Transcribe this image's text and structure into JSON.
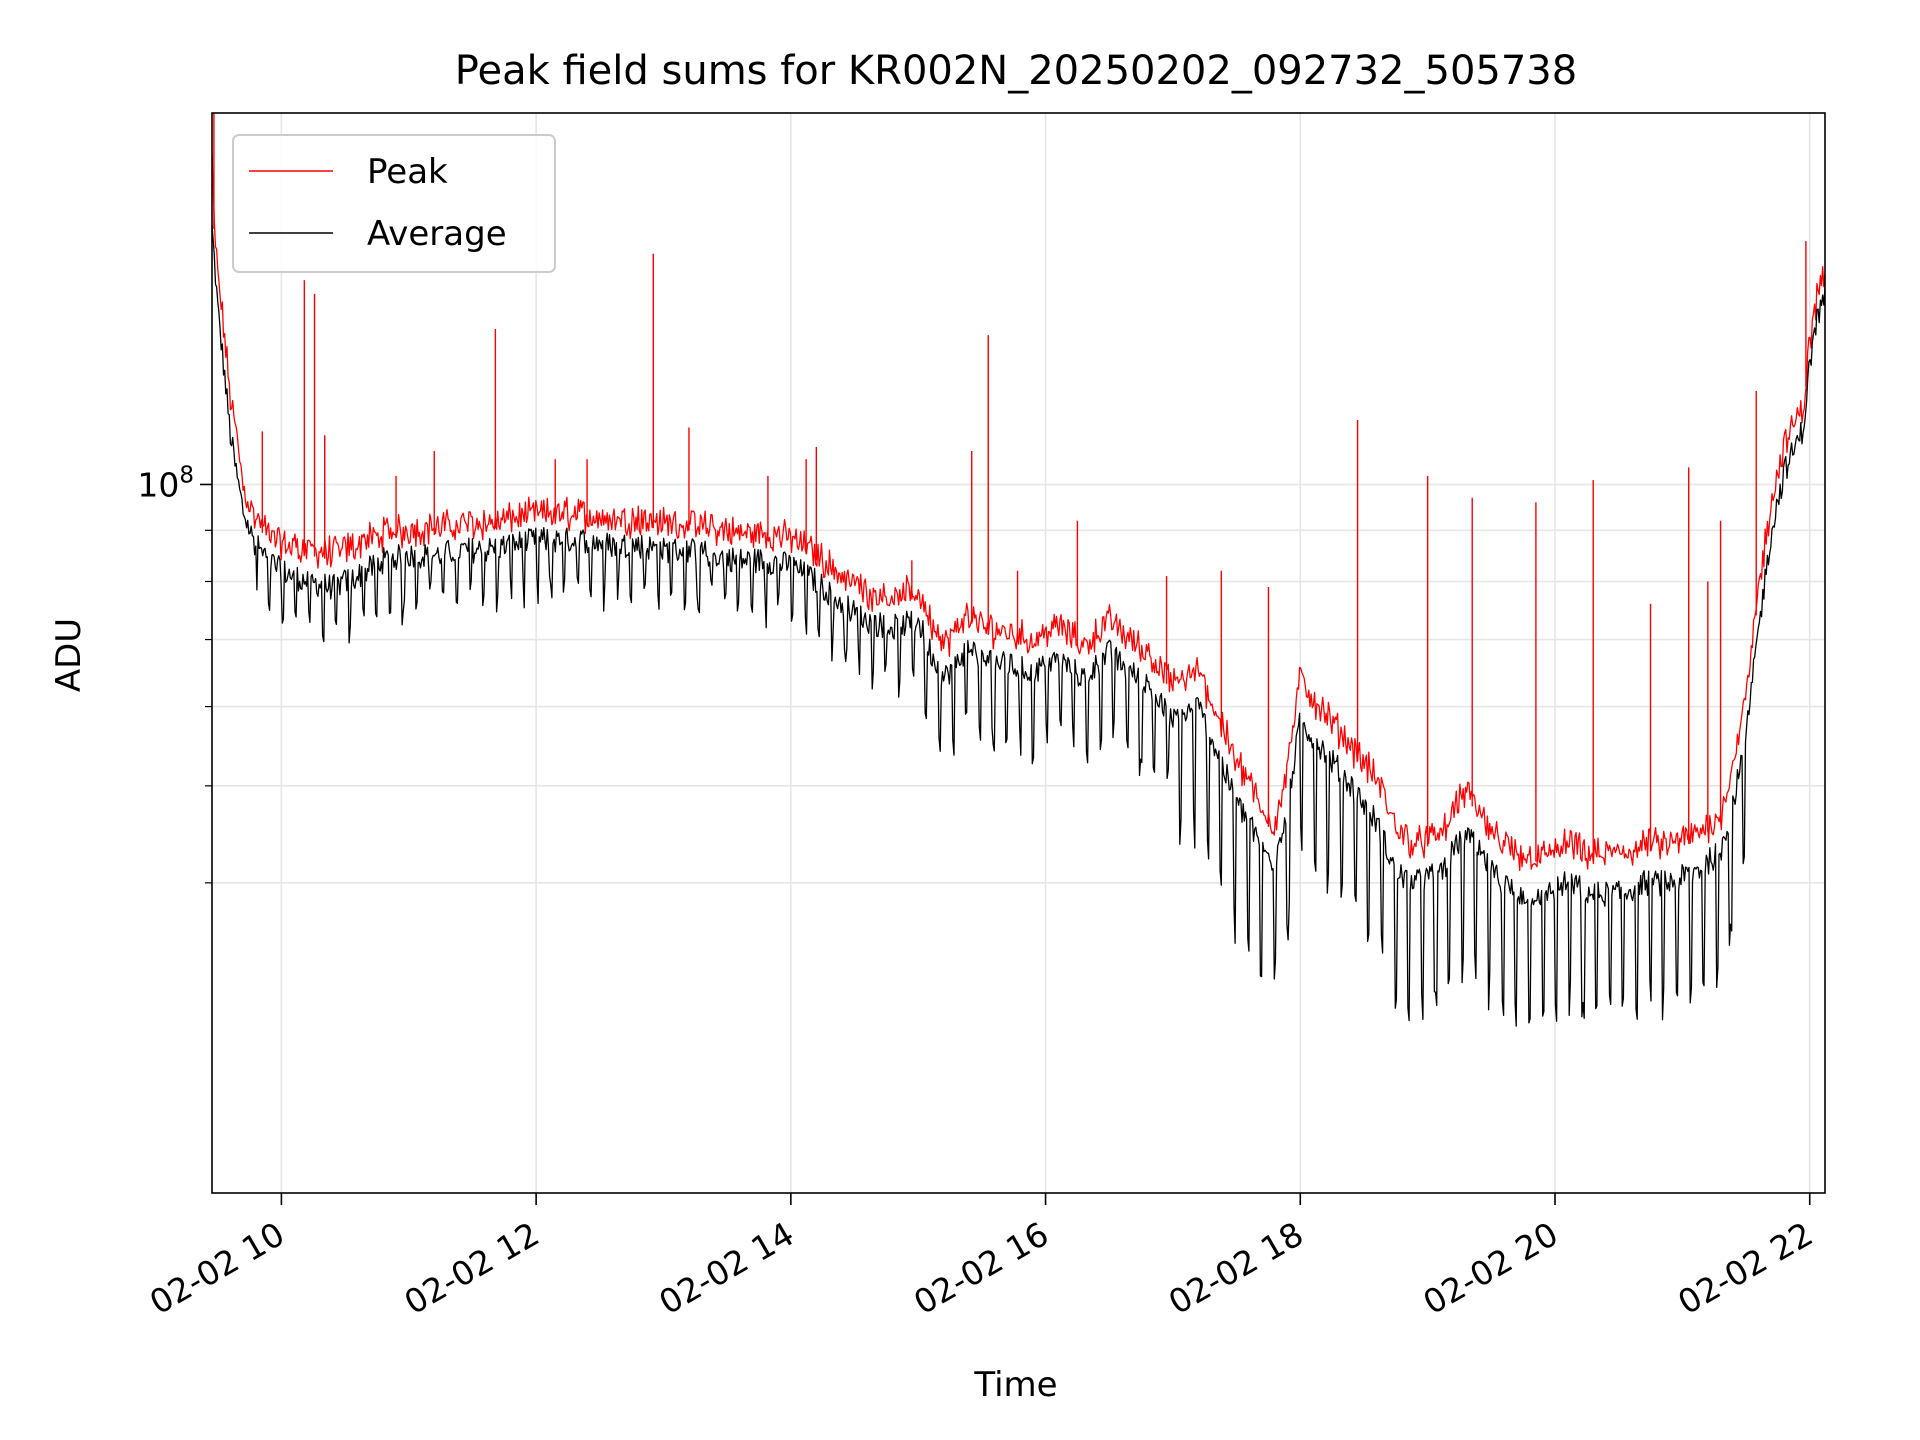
{
  "chart_data": {
    "type": "line",
    "title": "Peak field sums for KR002N_20250202_092732_505738",
    "xlabel": "Time",
    "ylabel": "ADU",
    "yscale": "log",
    "ylim": [
      19600000,
      235000000
    ],
    "xlim_hours": [
      9.455,
      22.12
    ],
    "x_ticks": [
      {
        "value": 10,
        "label": "02-02 10"
      },
      {
        "value": 12,
        "label": "02-02 12"
      },
      {
        "value": 14,
        "label": "02-02 14"
      },
      {
        "value": 16,
        "label": "02-02 16"
      },
      {
        "value": 18,
        "label": "02-02 18"
      },
      {
        "value": 20,
        "label": "02-02 20"
      },
      {
        "value": 22,
        "label": "02-02 22"
      }
    ],
    "y_major_ticks": [
      {
        "value": 100000000,
        "label_base": "10",
        "label_exp": "8"
      }
    ],
    "y_minor_ticks": [
      40000000,
      50000000,
      60000000,
      70000000,
      80000000,
      90000000
    ],
    "grid": true,
    "legend_position": "top-left",
    "colors": {
      "Peak": "#ff0000",
      "Average": "#000000"
    },
    "series": [
      {
        "name": "Peak",
        "x": [
          9.455,
          9.47,
          9.5,
          9.55,
          9.6,
          9.65,
          9.7,
          9.75,
          9.8,
          9.9,
          10.0,
          10.2,
          10.4,
          10.6,
          10.8,
          11.0,
          11.2,
          11.4,
          11.6,
          11.8,
          12.0,
          12.2,
          12.4,
          12.6,
          12.8,
          13.0,
          13.2,
          13.4,
          13.6,
          13.8,
          14.0,
          14.2,
          14.4,
          14.6,
          14.8,
          15.0,
          15.1,
          15.2,
          15.4,
          15.5,
          15.7,
          15.9,
          16.1,
          16.3,
          16.5,
          16.6,
          16.8,
          17.0,
          17.2,
          17.4,
          17.5,
          17.6,
          17.7,
          17.8,
          17.9,
          18.0,
          18.2,
          18.4,
          18.6,
          18.75,
          18.9,
          19.1,
          19.3,
          19.5,
          19.7,
          19.9,
          20.1,
          20.3,
          20.5,
          20.7,
          20.9,
          21.1,
          21.3,
          21.4,
          21.5,
          21.6,
          21.7,
          21.8,
          21.9,
          21.95,
          22.0,
          22.05,
          22.1,
          22.12
        ],
        "values": [
          210000000,
          180000000,
          160000000,
          140000000,
          120000000,
          110000000,
          98000000,
          94000000,
          91000000,
          88000000,
          86000000,
          85000000,
          84000000,
          86000000,
          88000000,
          89000000,
          89000000,
          90000000,
          90000000,
          91000000,
          92000000,
          92000000,
          92000000,
          91000000,
          91000000,
          90000000,
          90000000,
          89000000,
          88000000,
          88000000,
          87000000,
          84000000,
          80000000,
          77000000,
          76000000,
          77000000,
          72000000,
          68000000,
          73000000,
          71000000,
          70000000,
          69000000,
          71000000,
          68000000,
          72000000,
          70000000,
          67000000,
          62000000,
          64000000,
          56000000,
          52000000,
          50000000,
          46000000,
          45000000,
          52000000,
          63000000,
          58000000,
          54000000,
          50000000,
          45000000,
          43000000,
          44000000,
          49000000,
          44000000,
          42000000,
          42000000,
          43000000,
          42000000,
          42000000,
          43000000,
          43000000,
          44000000,
          46000000,
          52000000,
          60000000,
          78000000,
          95000000,
          108000000,
          114000000,
          118000000,
          137000000,
          150000000,
          158000000,
          160000000
        ]
      },
      {
        "name": "Average",
        "x": [
          9.455,
          9.47,
          9.5,
          9.55,
          9.6,
          9.65,
          9.7,
          9.75,
          9.8,
          9.9,
          10.0,
          10.2,
          10.4,
          10.6,
          10.8,
          11.0,
          11.2,
          11.4,
          11.6,
          11.8,
          12.0,
          12.2,
          12.4,
          12.6,
          12.8,
          13.0,
          13.2,
          13.4,
          13.6,
          13.8,
          14.0,
          14.2,
          14.4,
          14.6,
          14.8,
          15.0,
          15.1,
          15.2,
          15.4,
          15.5,
          15.7,
          15.9,
          16.1,
          16.3,
          16.5,
          16.6,
          16.8,
          17.0,
          17.2,
          17.4,
          17.5,
          17.6,
          17.7,
          17.8,
          17.9,
          18.0,
          18.2,
          18.4,
          18.6,
          18.75,
          18.9,
          19.1,
          19.3,
          19.5,
          19.7,
          19.9,
          20.1,
          20.3,
          20.5,
          20.7,
          20.9,
          21.1,
          21.3,
          21.4,
          21.5,
          21.6,
          21.7,
          21.8,
          21.9,
          21.95,
          22.0,
          22.05,
          22.1,
          22.12
        ],
        "values": [
          180000000,
          170000000,
          150000000,
          130000000,
          112000000,
          102000000,
          94000000,
          90000000,
          87000000,
          84000000,
          82000000,
          80000000,
          79000000,
          81000000,
          84000000,
          85000000,
          85000000,
          86000000,
          86000000,
          87000000,
          88000000,
          88000000,
          88000000,
          87000000,
          87000000,
          86000000,
          86000000,
          85000000,
          84000000,
          84000000,
          83000000,
          80000000,
          76000000,
          73000000,
          72000000,
          73000000,
          68000000,
          64000000,
          69000000,
          67000000,
          66000000,
          65000000,
          67000000,
          64000000,
          68000000,
          66000000,
          63000000,
          58000000,
          60000000,
          52000000,
          48000000,
          46000000,
          43000000,
          42000000,
          48000000,
          58000000,
          54000000,
          50000000,
          46000000,
          41000000,
          40000000,
          41000000,
          45000000,
          41000000,
          39000000,
          39000000,
          40000000,
          39000000,
          39000000,
          40000000,
          40000000,
          41000000,
          43000000,
          48000000,
          56000000,
          72000000,
          90000000,
          103000000,
          110000000,
          114000000,
          132000000,
          145000000,
          152000000,
          155000000
        ]
      }
    ],
    "spikes": [
      {
        "x": 9.47,
        "top": 235000000
      },
      {
        "x": 9.85,
        "top": 113000000
      },
      {
        "x": 10.18,
        "top": 160000000
      },
      {
        "x": 10.26,
        "top": 155000000
      },
      {
        "x": 10.34,
        "top": 112000000
      },
      {
        "x": 10.9,
        "top": 102000000
      },
      {
        "x": 11.2,
        "top": 108000000
      },
      {
        "x": 11.68,
        "top": 143000000
      },
      {
        "x": 12.15,
        "top": 106000000
      },
      {
        "x": 12.4,
        "top": 106000000
      },
      {
        "x": 12.92,
        "top": 170000000
      },
      {
        "x": 13.2,
        "top": 114000000
      },
      {
        "x": 13.82,
        "top": 102000000
      },
      {
        "x": 14.12,
        "top": 106000000
      },
      {
        "x": 14.2,
        "top": 109000000
      },
      {
        "x": 14.95,
        "top": 84000000
      },
      {
        "x": 15.42,
        "top": 108000000
      },
      {
        "x": 15.55,
        "top": 141000000
      },
      {
        "x": 15.78,
        "top": 82000000
      },
      {
        "x": 16.25,
        "top": 92000000
      },
      {
        "x": 16.95,
        "top": 81000000
      },
      {
        "x": 17.38,
        "top": 82000000
      },
      {
        "x": 17.75,
        "top": 79000000
      },
      {
        "x": 18.45,
        "top": 116000000
      },
      {
        "x": 19.0,
        "top": 102000000
      },
      {
        "x": 19.35,
        "top": 97000000
      },
      {
        "x": 19.85,
        "top": 96000000
      },
      {
        "x": 20.3,
        "top": 101000000
      },
      {
        "x": 20.75,
        "top": 76000000
      },
      {
        "x": 21.05,
        "top": 104000000
      },
      {
        "x": 21.2,
        "top": 80000000
      },
      {
        "x": 21.3,
        "top": 92000000
      },
      {
        "x": 21.58,
        "top": 124000000
      },
      {
        "x": 21.97,
        "top": 175000000
      }
    ]
  }
}
